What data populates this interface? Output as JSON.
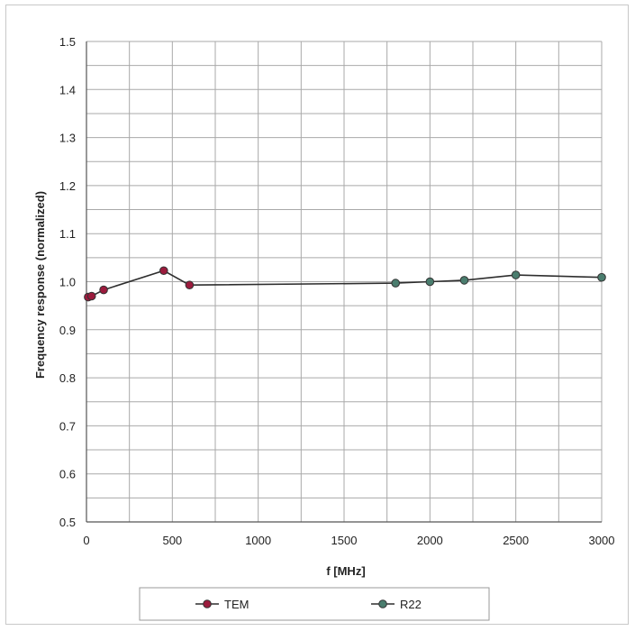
{
  "chart_data": {
    "type": "line",
    "xlabel": "f [MHz]",
    "ylabel": "Frequency response (normalized)",
    "xlim": [
      0,
      3000
    ],
    "ylim": [
      0.5,
      1.5
    ],
    "x_ticks": [
      0,
      500,
      1000,
      1500,
      2000,
      2500,
      3000
    ],
    "y_ticks": [
      0.5,
      0.6,
      0.7,
      0.8,
      0.9,
      1.0,
      1.1,
      1.2,
      1.3,
      1.4,
      1.5
    ],
    "x_tick_labels": [
      "0",
      "500",
      "1000",
      "1500",
      "2000",
      "2500",
      "3000"
    ],
    "y_tick_labels": [
      "0.5",
      "0.6",
      "0.7",
      "0.8",
      "0.9",
      "1.0",
      "1.1",
      "1.2",
      "1.3",
      "1.4",
      "1.5"
    ],
    "grid": true,
    "legend_position": "bottom",
    "series": [
      {
        "name": "TEM",
        "color": "#9b1b3d",
        "points": [
          [
            10,
            0.968
          ],
          [
            30,
            0.97
          ],
          [
            100,
            0.983
          ],
          [
            450,
            1.023
          ],
          [
            600,
            0.993
          ]
        ]
      },
      {
        "name": "R22",
        "color": "#4a7d6e",
        "points": [
          [
            600,
            0.993
          ],
          [
            1800,
            0.997
          ],
          [
            2000,
            1.0
          ],
          [
            2200,
            1.003
          ],
          [
            2500,
            1.014
          ],
          [
            3000,
            1.009
          ]
        ]
      }
    ]
  }
}
